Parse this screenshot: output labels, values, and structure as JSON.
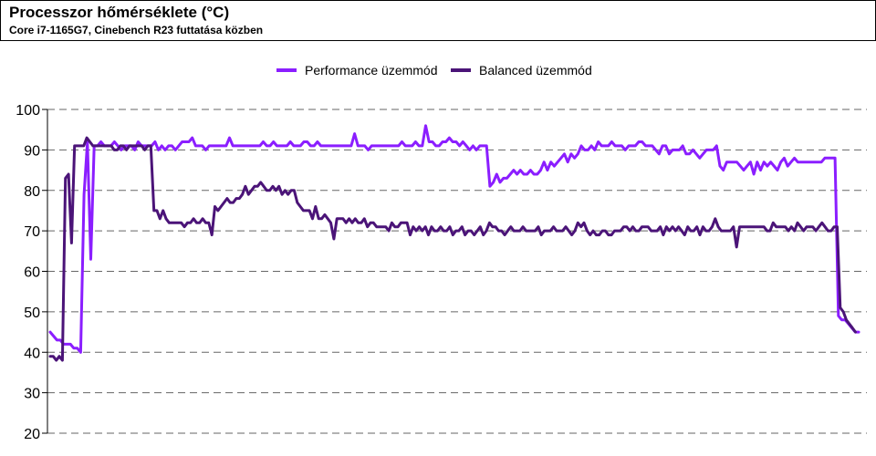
{
  "header": {
    "title": "Processzor hőmérséklete (°C)",
    "subtitle": "Core i7-1165G7, Cinebench R23 futtatása közben"
  },
  "colors": {
    "performance": "#8B1EFF",
    "balanced": "#4B1478",
    "grid": "#666666"
  },
  "chart_data": {
    "type": "line",
    "title": "Processzor hőmérséklete (°C)",
    "subtitle": "Core i7-1165G7, Cinebench R23 futtatása közben",
    "xlabel": "",
    "ylabel": "",
    "ylim": [
      20,
      100
    ],
    "yticks": [
      20,
      30,
      40,
      50,
      60,
      70,
      80,
      90,
      100
    ],
    "grid": true,
    "legend_position": "top-center",
    "series": [
      {
        "name": "Performance üzemmód",
        "color": "#8B1EFF",
        "values": [
          45,
          44,
          43,
          43,
          42,
          42,
          42,
          41,
          41,
          40,
          79,
          92,
          63,
          91,
          91,
          92,
          91,
          91,
          91,
          92,
          91,
          90,
          91,
          91,
          91,
          90,
          92,
          91,
          91,
          91,
          91,
          92,
          90,
          91,
          90,
          91,
          91,
          90,
          91,
          92,
          92,
          92,
          93,
          91,
          91,
          91,
          90,
          91,
          91,
          91,
          91,
          91,
          91,
          93,
          91,
          91,
          91,
          91,
          91,
          91,
          91,
          91,
          91,
          92,
          91,
          91,
          92,
          91,
          91,
          91,
          91,
          92,
          91,
          91,
          91,
          92,
          92,
          91,
          91,
          92,
          91,
          91,
          91,
          91,
          91,
          91,
          91,
          91,
          91,
          91,
          94,
          91,
          91,
          91,
          90,
          91,
          91,
          91,
          91,
          91,
          91,
          91,
          91,
          91,
          92,
          91,
          91,
          91,
          92,
          91,
          91,
          96,
          92,
          92,
          91,
          91,
          92,
          92,
          93,
          92,
          92,
          91,
          92,
          91,
          90,
          91,
          90,
          91,
          91,
          91,
          81,
          82,
          84,
          82,
          83,
          83,
          84,
          85,
          84,
          85,
          84,
          84,
          85,
          84,
          84,
          85,
          87,
          85,
          87,
          86,
          87,
          88,
          89,
          87,
          89,
          88,
          89,
          91,
          90,
          90,
          91,
          90,
          92,
          91,
          91,
          91,
          92,
          91,
          91,
          91,
          90,
          91,
          91,
          91,
          92,
          92,
          91,
          91,
          91,
          90,
          89,
          91,
          91,
          89,
          90,
          90,
          90,
          91,
          89,
          89,
          90,
          89,
          88,
          89,
          90,
          90,
          90,
          91,
          86,
          85,
          87,
          87,
          87,
          87,
          86,
          85,
          86,
          87,
          84,
          87,
          85,
          87,
          86,
          87,
          86,
          85,
          87,
          88,
          86,
          87,
          88,
          87,
          87,
          87,
          87,
          87,
          87,
          87,
          87,
          88,
          88,
          88,
          88,
          49,
          48,
          48,
          47,
          46,
          45,
          45
        ],
        "x_start": 0,
        "x_end": 255
      },
      {
        "name": "Balanced üzemmód",
        "color": "#4B1478",
        "values": [
          39,
          39,
          38,
          39,
          38,
          83,
          84,
          67,
          91,
          91,
          91,
          91,
          93,
          92,
          91,
          91,
          91,
          91,
          91,
          91,
          91,
          90,
          90,
          91,
          91,
          90,
          91,
          91,
          91,
          91,
          91,
          90,
          91,
          91,
          75,
          75,
          73,
          75,
          73,
          72,
          72,
          72,
          72,
          72,
          71,
          72,
          72,
          73,
          72,
          72,
          73,
          72,
          72,
          69,
          76,
          75,
          76,
          77,
          78,
          77,
          77,
          78,
          78,
          79,
          81,
          79,
          80,
          81,
          81,
          82,
          81,
          80,
          80,
          81,
          80,
          81,
          79,
          80,
          79,
          80,
          80,
          77,
          76,
          75,
          75,
          75,
          73,
          76,
          73,
          73,
          74,
          73,
          72,
          68,
          73,
          73,
          73,
          72,
          73,
          72,
          73,
          72,
          72,
          73,
          71,
          72,
          72,
          71,
          71,
          71,
          71,
          70,
          72,
          71,
          71,
          72,
          72,
          72,
          69,
          71,
          70,
          71,
          70,
          71,
          69,
          71,
          70,
          70,
          71,
          70,
          70,
          71,
          69,
          70,
          70,
          71,
          69,
          70,
          70,
          69,
          70,
          71,
          69,
          70,
          72,
          71,
          71,
          70,
          70,
          69,
          70,
          71,
          70,
          70,
          70,
          71,
          70,
          70,
          70,
          70,
          71,
          69,
          70,
          70,
          70,
          71,
          70,
          70,
          70,
          71,
          70,
          69,
          70,
          72,
          71,
          72,
          70,
          69,
          70,
          69,
          69,
          70,
          70,
          69,
          69,
          70,
          70,
          70,
          71,
          71,
          70,
          71,
          70,
          70,
          71,
          71,
          71,
          70,
          70,
          70,
          71,
          69,
          71,
          70,
          71,
          70,
          71,
          70,
          69,
          71,
          70,
          70,
          71,
          69,
          71,
          70,
          70,
          71,
          73,
          71,
          70,
          70,
          70,
          70,
          71,
          66,
          71,
          71,
          71,
          71,
          71,
          71,
          71,
          71,
          71,
          70,
          70,
          72,
          71,
          71,
          71,
          71,
          70,
          71,
          70,
          72,
          71,
          70,
          71,
          71,
          71,
          70,
          71,
          72,
          71,
          70,
          70,
          71,
          71,
          51,
          50,
          48,
          47,
          46,
          45
        ],
        "x_start": 0,
        "x_end": 254
      }
    ]
  }
}
